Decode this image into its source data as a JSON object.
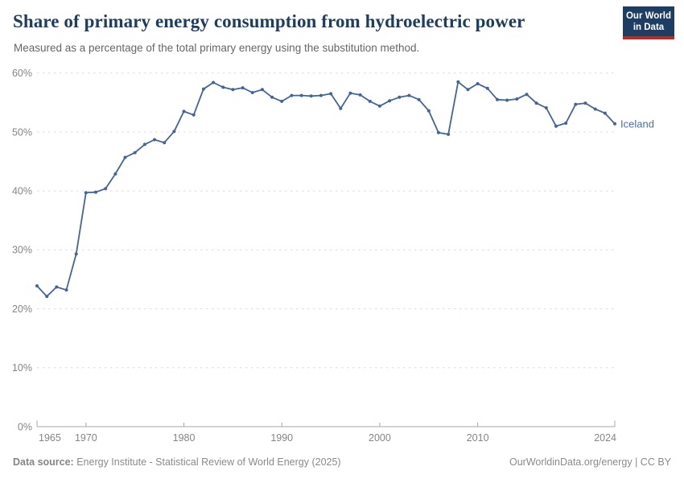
{
  "header": {
    "title": "Share of primary energy consumption from hydroelectric power",
    "subtitle": "Measured as a percentage of the total primary energy using the substitution method.",
    "logo": {
      "line1": "Our World",
      "line2": "in Data"
    }
  },
  "footer": {
    "datasource_label": "Data source:",
    "datasource_text": " Energy Institute - Statistical Review of World Energy (2025)",
    "credit": "OurWorldinData.org/energy | CC BY"
  },
  "colors": {
    "title": "#1d3d63",
    "subtitle": "#666666",
    "line": "#44639e",
    "entity_label": "#4c6fa5",
    "axis_text": "#858585",
    "gridline": "#dcdcdc",
    "axis_line": "#a7a7a7",
    "logo_bg": "#1d3d63",
    "logo_red": "#c0291f",
    "footer_text": "#8a8a8a"
  },
  "chart_data": {
    "type": "line",
    "title": "Share of primary energy consumption from hydroelectric power",
    "entity": "Iceland",
    "unit": "%",
    "xlim": [
      1965,
      2024
    ],
    "ylim": [
      0,
      60
    ],
    "grid": "horizontal-dashed",
    "legend": "end-of-line-label",
    "xticks": [
      1965,
      1970,
      1980,
      1990,
      2000,
      2010,
      2024
    ],
    "yticks": [
      0,
      10,
      20,
      30,
      40,
      50,
      60
    ],
    "ytick_suffix": "%",
    "x": [
      1965,
      1966,
      1967,
      1968,
      1969,
      1970,
      1971,
      1972,
      1973,
      1974,
      1975,
      1976,
      1977,
      1978,
      1979,
      1980,
      1981,
      1982,
      1983,
      1984,
      1985,
      1986,
      1987,
      1988,
      1989,
      1990,
      1991,
      1992,
      1993,
      1994,
      1995,
      1996,
      1997,
      1998,
      1999,
      2000,
      2001,
      2002,
      2003,
      2004,
      2005,
      2006,
      2007,
      2008,
      2009,
      2010,
      2011,
      2012,
      2013,
      2014,
      2015,
      2016,
      2017,
      2018,
      2019,
      2020,
      2021,
      2022,
      2023,
      2024
    ],
    "values": [
      23.9,
      22.1,
      23.7,
      23.2,
      29.3,
      39.7,
      39.8,
      40.4,
      42.9,
      45.7,
      46.5,
      47.9,
      48.7,
      48.2,
      50.1,
      53.5,
      52.9,
      57.3,
      58.4,
      57.6,
      57.2,
      57.5,
      56.7,
      57.2,
      55.9,
      55.2,
      56.2,
      56.2,
      56.1,
      56.2,
      56.5,
      54.0,
      56.6,
      56.3,
      55.2,
      54.4,
      55.3,
      55.9,
      56.2,
      55.5,
      53.6,
      49.9,
      49.6,
      58.5,
      57.2,
      58.2,
      57.4,
      55.5,
      55.4,
      55.6,
      56.4,
      54.9,
      54.1,
      51.0,
      51.5,
      54.7,
      54.9,
      53.9,
      53.2,
      51.4
    ]
  }
}
